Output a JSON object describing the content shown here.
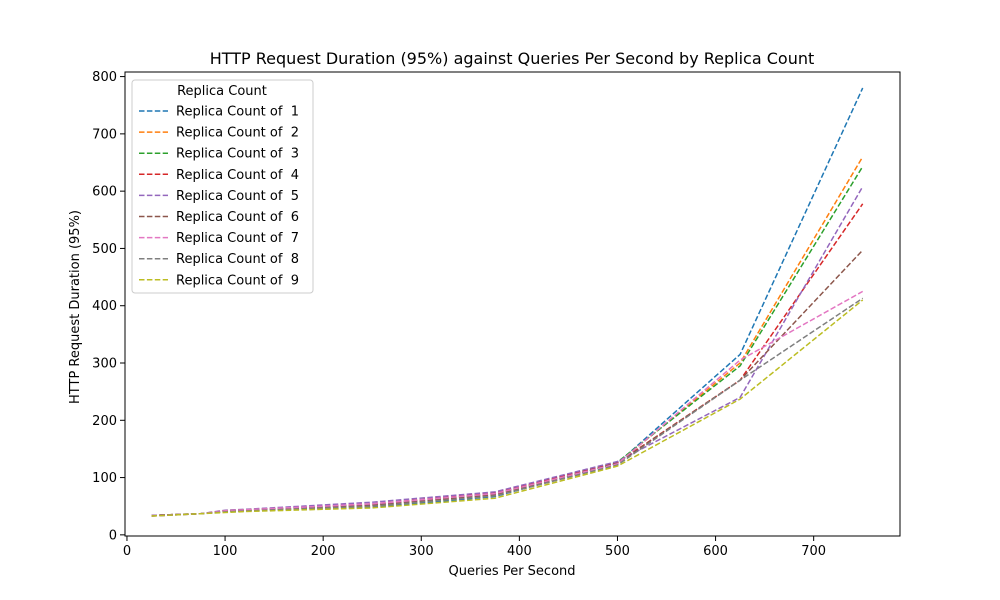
{
  "chart_data": {
    "type": "line",
    "title": "HTTP Request Duration (95%) against Queries Per Second by Replica Count",
    "xlabel": "Queries Per Second",
    "ylabel": "HTTP Request Duration (95%)",
    "xlim": [
      -2,
      788
    ],
    "ylim": [
      -2,
      808
    ],
    "xticks": [
      0,
      100,
      200,
      300,
      400,
      500,
      600,
      700
    ],
    "yticks": [
      0,
      100,
      200,
      300,
      400,
      500,
      600,
      700,
      800
    ],
    "grid": false,
    "line_style": "dashed",
    "legend": {
      "title": "Replica Count",
      "placement": "top-left"
    },
    "x": [
      25,
      75,
      100,
      125,
      250,
      375,
      500,
      625,
      750
    ],
    "series": [
      {
        "name": "Replica Count of  1",
        "color": "#1f77b4",
        "values": [
          34,
          37,
          40,
          42,
          48,
          67,
          125,
          315,
          780
        ]
      },
      {
        "name": "Replica Count of  2",
        "color": "#ff7f0e",
        "values": [
          34,
          37,
          41,
          43,
          50,
          70,
          125,
          300,
          660
        ]
      },
      {
        "name": "Replica Count of  3",
        "color": "#2ca02c",
        "values": [
          34,
          37,
          41,
          43,
          52,
          72,
          127,
          295,
          643
        ]
      },
      {
        "name": "Replica Count of  4",
        "color": "#d62728",
        "values": [
          34,
          37,
          42,
          44,
          54,
          73,
          126,
          270,
          578
        ]
      },
      {
        "name": "Replica Count of  5",
        "color": "#9467bd",
        "values": [
          34,
          37,
          43,
          45,
          57,
          75,
          128,
          240,
          608
        ]
      },
      {
        "name": "Replica Count of  6",
        "color": "#8c564b",
        "values": [
          33,
          37,
          42,
          44,
          52,
          70,
          125,
          270,
          497
        ]
      },
      {
        "name": "Replica Count of  7",
        "color": "#e377c2",
        "values": [
          33,
          37,
          42,
          44,
          54,
          72,
          124,
          305,
          425
        ]
      },
      {
        "name": "Replica Count of  8",
        "color": "#7f7f7f",
        "values": [
          33,
          37,
          40,
          42,
          50,
          68,
          122,
          270,
          413
        ]
      },
      {
        "name": "Replica Count of  9",
        "color": "#bcbd22",
        "values": [
          33,
          37,
          39,
          41,
          47,
          64,
          120,
          237,
          410
        ]
      }
    ]
  }
}
